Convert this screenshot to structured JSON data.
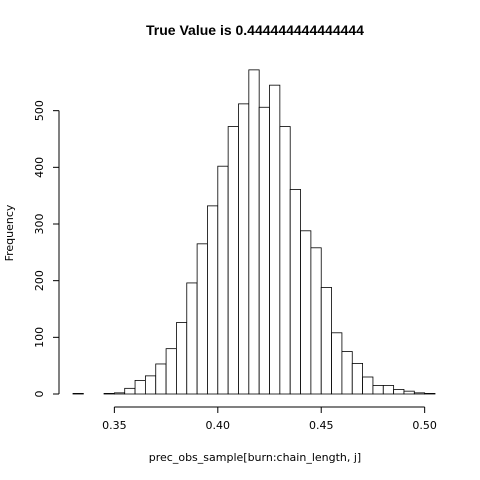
{
  "chart_data": {
    "type": "bar",
    "title": "True Value is 0.444444444444444",
    "xlabel": "prec_obs_sample[burn:chain_length, j]",
    "ylabel": "Frequency",
    "xlim": [
      0.33,
      0.505
    ],
    "ylim": [
      0,
      570
    ],
    "bin_width": 0.005,
    "bin_starts": [
      0.33,
      0.335,
      0.34,
      0.345,
      0.35,
      0.355,
      0.36,
      0.365,
      0.37,
      0.375,
      0.38,
      0.385,
      0.39,
      0.395,
      0.4,
      0.405,
      0.41,
      0.415,
      0.42,
      0.425,
      0.43,
      0.435,
      0.44,
      0.445,
      0.45,
      0.455,
      0.46,
      0.465,
      0.47,
      0.475,
      0.48,
      0.485,
      0.49,
      0.495,
      0.5
    ],
    "values": [
      1,
      0,
      0,
      1,
      2,
      10,
      24,
      32,
      53,
      80,
      126,
      196,
      265,
      332,
      402,
      472,
      512,
      572,
      506,
      545,
      472,
      361,
      288,
      258,
      188,
      108,
      75,
      54,
      30,
      15,
      15,
      8,
      5,
      2,
      1
    ],
    "x_ticks": [
      "0.35",
      "0.40",
      "0.45",
      "0.50"
    ],
    "x_tick_values": [
      0.35,
      0.4,
      0.45,
      0.5
    ],
    "y_ticks": [
      "0",
      "100",
      "200",
      "300",
      "400",
      "500"
    ],
    "y_tick_values": [
      0,
      100,
      200,
      300,
      400,
      500
    ],
    "grid": false,
    "legend": "none"
  }
}
